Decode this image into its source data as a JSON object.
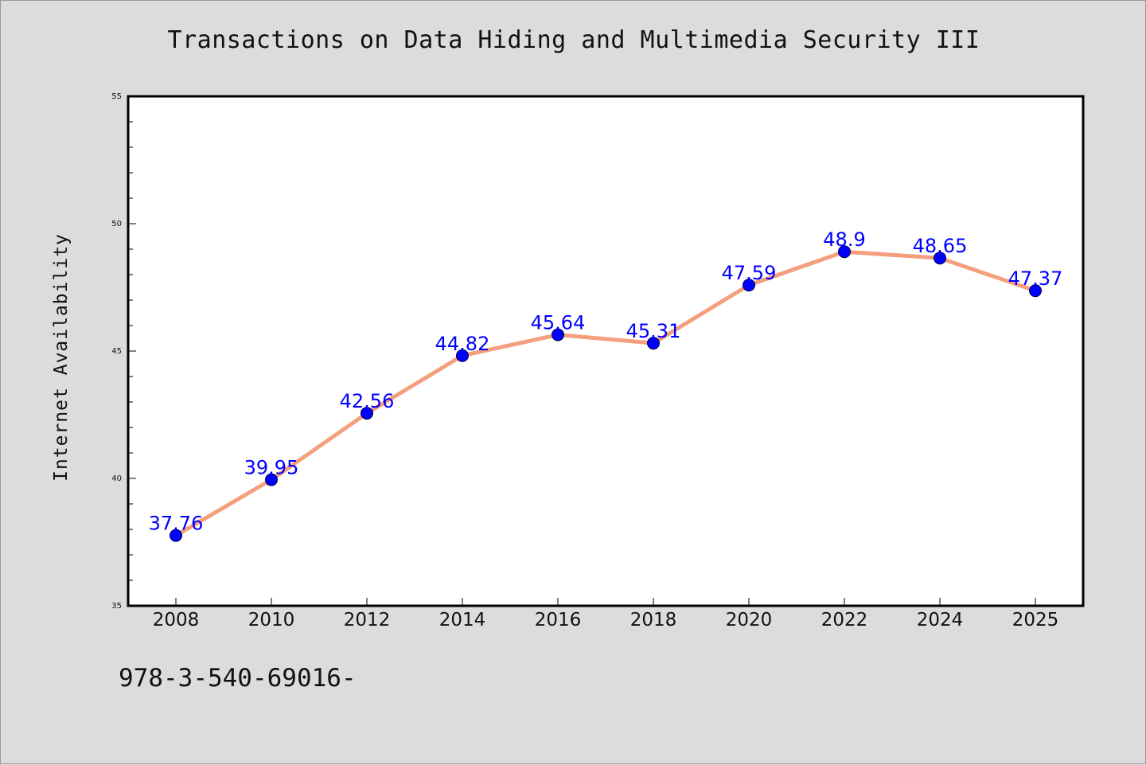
{
  "chart_data": {
    "type": "line",
    "title": "Transactions on Data Hiding and Multimedia Security III",
    "xlabel": "",
    "ylabel": "Internet Availability",
    "categories": [
      "2008",
      "2010",
      "2012",
      "2014",
      "2016",
      "2018",
      "2020",
      "2022",
      "2024",
      "2025"
    ],
    "series": [
      {
        "values": [
          37.76,
          39.95,
          42.56,
          44.82,
          45.64,
          45.31,
          47.59,
          48.9,
          48.65,
          47.37
        ],
        "data_labels": [
          "37.76",
          "39.95",
          "42.56",
          "44.82",
          "45.64",
          "45.31",
          "47.59",
          "48.9",
          "48.65",
          "47.37"
        ]
      }
    ],
    "ylim": [
      35,
      55
    ],
    "yticks": [
      "35",
      "40",
      "45",
      "50",
      "55"
    ],
    "grid": false,
    "legend": "none",
    "colors": {
      "line": "#f4a07e",
      "marker": "#0000ff",
      "data_label": "#0000ff",
      "background": "#dcdcdc",
      "plot_background": "#ffffff"
    }
  },
  "footnote": "978-3-540-69016-"
}
